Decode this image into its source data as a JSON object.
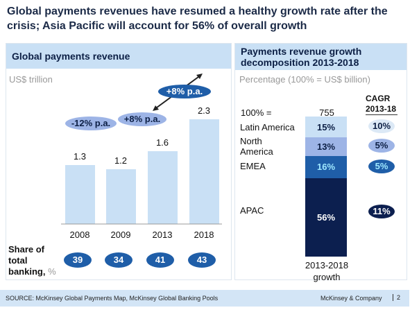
{
  "title": "Global payments revenues have resumed a healthy growth rate after the crisis; Asia Pacific will account for 56% of overall growth",
  "chart_data": [
    {
      "type": "bar",
      "title": "Global payments revenue",
      "ylabel": "US$ trillion",
      "categories": [
        "2008",
        "2009",
        "2013",
        "2018"
      ],
      "values": [
        1.3,
        1.2,
        1.6,
        2.3
      ],
      "value_labels": [
        "1.3",
        "1.2",
        "1.6",
        "2.3"
      ],
      "bar_color": "#c9e0f5",
      "growth_annotations": [
        {
          "label": "-12% p.a.",
          "color": "#9db4e6"
        },
        {
          "label": "+8% p.a.",
          "color": "#9db4e6"
        },
        {
          "label": "+8% p.a.",
          "color": "#1f5ea8"
        }
      ],
      "share_label": "Share of total banking,",
      "share_unit": "%",
      "share_values": [
        "39",
        "34",
        "41",
        "43"
      ],
      "share_color": "#1f5ea8"
    },
    {
      "type": "bar",
      "stacked": true,
      "title": "Payments revenue growth decomposition 2013-2018",
      "ylabel": "Percentage (100% = US$ billion)",
      "total_label": "100% =",
      "total": "755",
      "category": "2013-2018 growth",
      "cagr_header": "CAGR 2013-18",
      "segments": [
        {
          "name": "Latin America",
          "value": 15,
          "label": "15%",
          "color": "#c9e0f5",
          "text": "#0c1f45",
          "cagr": "10%",
          "cagr_bg": "#dce9f6",
          "cagr_text": "#0c1f45"
        },
        {
          "name": "North America",
          "value": 13,
          "label": "13%",
          "color": "#9db4e6",
          "text": "#0c1f45",
          "cagr": "5%",
          "cagr_bg": "#9db4e6",
          "cagr_text": "#0c1f45"
        },
        {
          "name": "EMEA",
          "value": 16,
          "label": "16%",
          "color": "#1f5ea8",
          "text": "#9fe8ff",
          "cagr": "5%",
          "cagr_bg": "#1f5ea8",
          "cagr_text": "#9fe8ff"
        },
        {
          "name": "APAC",
          "value": 56,
          "label": "56%",
          "color": "#0c1f4f",
          "text": "#ffffff",
          "cagr": "11%",
          "cagr_bg": "#0c1f4f",
          "cagr_text": "#ffffff"
        }
      ]
    }
  ],
  "footer": {
    "source": "SOURCE: McKinsey Global Payments Map, McKinsey Global Banking Pools",
    "brand": "McKinsey & Company",
    "page": "2"
  }
}
